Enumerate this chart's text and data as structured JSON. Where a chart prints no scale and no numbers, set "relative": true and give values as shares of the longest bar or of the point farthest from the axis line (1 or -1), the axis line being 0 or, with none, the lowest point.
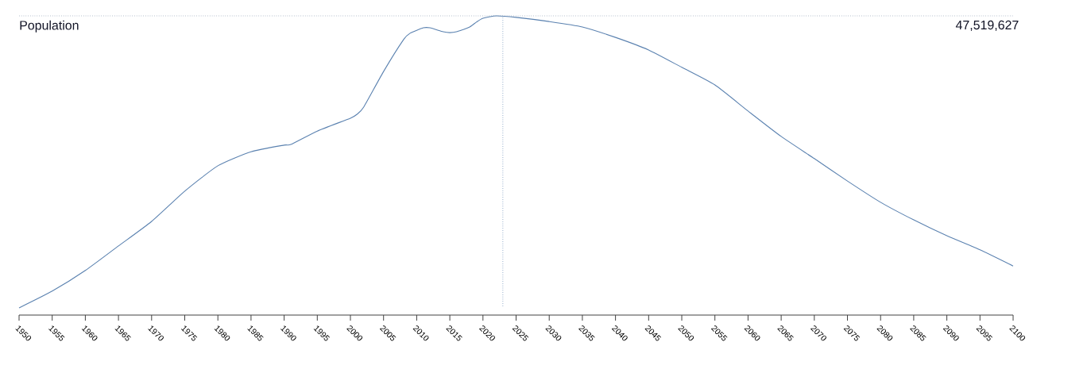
{
  "chart_data": {
    "type": "line",
    "title": "Population",
    "relative": true,
    "annotations": [
      "47,519,627"
    ],
    "x": [
      1950,
      1955,
      1960,
      1965,
      1970,
      1975,
      1980,
      1985,
      1990,
      1991,
      1995,
      2000,
      2001,
      2002,
      2005,
      2008,
      2009,
      2011,
      2012,
      2014,
      2015,
      2016,
      2018,
      2019,
      2020,
      2022,
      2025,
      2030,
      2035,
      2040,
      2045,
      2050,
      2055,
      2060,
      2065,
      2070,
      2075,
      2080,
      2085,
      2090,
      2095,
      2100
    ],
    "series": [
      {
        "color": "#5b82b0",
        "values": [
          0.024,
          0.08,
          0.149,
          0.231,
          0.313,
          0.414,
          0.499,
          0.546,
          0.568,
          0.57,
          0.615,
          0.658,
          0.671,
          0.695,
          0.814,
          0.92,
          0.942,
          0.96,
          0.96,
          0.947,
          0.944,
          0.947,
          0.963,
          0.979,
          0.992,
          1,
          0.995,
          0.981,
          0.963,
          0.928,
          0.886,
          0.828,
          0.769,
          0.682,
          0.597,
          0.523,
          0.448,
          0.377,
          0.318,
          0.265,
          0.218,
          0.164
        ]
      }
    ],
    "xlim": [
      1950,
      2100
    ],
    "xticks": [
      1950,
      1955,
      1960,
      1965,
      1970,
      1975,
      1980,
      1985,
      1990,
      1995,
      2000,
      2005,
      2010,
      2015,
      2020,
      2025,
      2030,
      2035,
      2040,
      2045,
      2050,
      2055,
      2060,
      2065,
      2070,
      2075,
      2080,
      2085,
      2090,
      2095,
      2100
    ],
    "ref_lines": [
      {
        "axis": "x",
        "value": 2023,
        "color": "#5b82b0",
        "line_style": "dotted"
      },
      {
        "axis": "y",
        "value": 1,
        "color": "#8a9bb0",
        "line_style": "dotted"
      }
    ],
    "marker": "none",
    "line_style": "solid"
  }
}
